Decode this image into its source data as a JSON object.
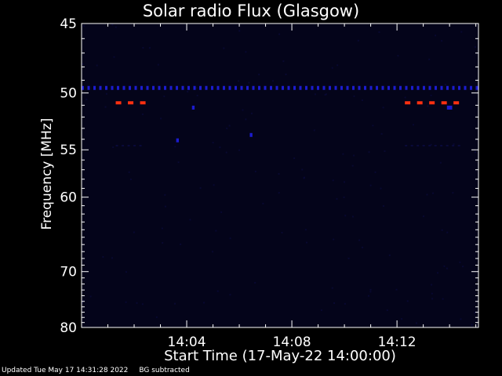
{
  "chart_data": {
    "type": "heatmap",
    "title": "Solar radio Flux (Glasgow)",
    "xlabel": "Start Time (17-May-22 14:00:00)",
    "ylabel": "Frequency [MHz]",
    "x_unit": "minutes after 14:00:00",
    "xlim": [
      0,
      15.1
    ],
    "ylim": [
      80,
      45
    ],
    "y_scale": "reciprocal",
    "x_tick_labels": [
      {
        "x": 4,
        "label": "14:04"
      },
      {
        "x": 8,
        "label": "14:08"
      },
      {
        "x": 12,
        "label": "14:12"
      }
    ],
    "y_tick_labels": [
      {
        "y": 45,
        "label": "45"
      },
      {
        "y": 50,
        "label": "50"
      },
      {
        "y": 55,
        "label": "55"
      },
      {
        "y": 60,
        "label": "60"
      },
      {
        "y": 70,
        "label": "70"
      },
      {
        "y": 80,
        "label": "80"
      }
    ],
    "background_color": "#04041a",
    "colors": {
      "low": "#0a0a3a",
      "mid": "#1c1cd0",
      "high": "#ff3010"
    },
    "series": [
      {
        "freq": 49.6,
        "intensity": "mid",
        "segments": [
          [
            0,
            15.1
          ]
        ]
      },
      {
        "freq": 50.8,
        "intensity": "high",
        "segments": [
          [
            1.3,
            2.5
          ],
          [
            12.3,
            14.6
          ]
        ]
      },
      {
        "freq": 54.6,
        "intensity": "low",
        "segments": [
          [
            1.3,
            2.5
          ],
          [
            12.3,
            14.6
          ]
        ]
      },
      {
        "freq": 51.2,
        "intensity": "mid",
        "segments": [
          [
            4.2,
            4.3
          ],
          [
            13.9,
            14.1
          ]
        ]
      },
      {
        "freq": 54.1,
        "intensity": "mid",
        "segments": [
          [
            3.6,
            3.7
          ]
        ]
      },
      {
        "freq": 53.6,
        "intensity": "mid",
        "segments": [
          [
            6.4,
            6.5
          ]
        ]
      }
    ]
  },
  "footer": {
    "updated": "Updated Tue May 17 14:31:28 2022",
    "note": "BG subtracted"
  }
}
